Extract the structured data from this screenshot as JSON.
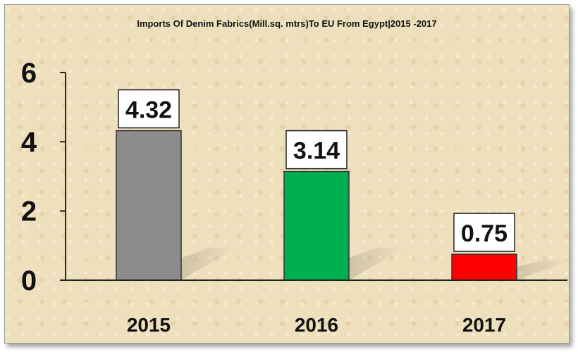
{
  "chart_data": {
    "type": "bar",
    "title": "Imports Of Denim Fabrics(Mill.sq. mtrs)To EU From Egypt|2015 -2017",
    "xlabel": "",
    "ylabel": "",
    "categories": [
      "2015",
      "2016",
      "2017"
    ],
    "values": [
      4.32,
      3.14,
      0.75
    ],
    "data_labels": [
      "4.32",
      "3.14",
      "0.75"
    ],
    "bar_colors": [
      "#8c8c8c",
      "#00b050",
      "#ff0000"
    ],
    "ylim": [
      0,
      6
    ],
    "yticks": [
      "0",
      "2",
      "4",
      "6"
    ],
    "grid": false,
    "legend": "none"
  }
}
